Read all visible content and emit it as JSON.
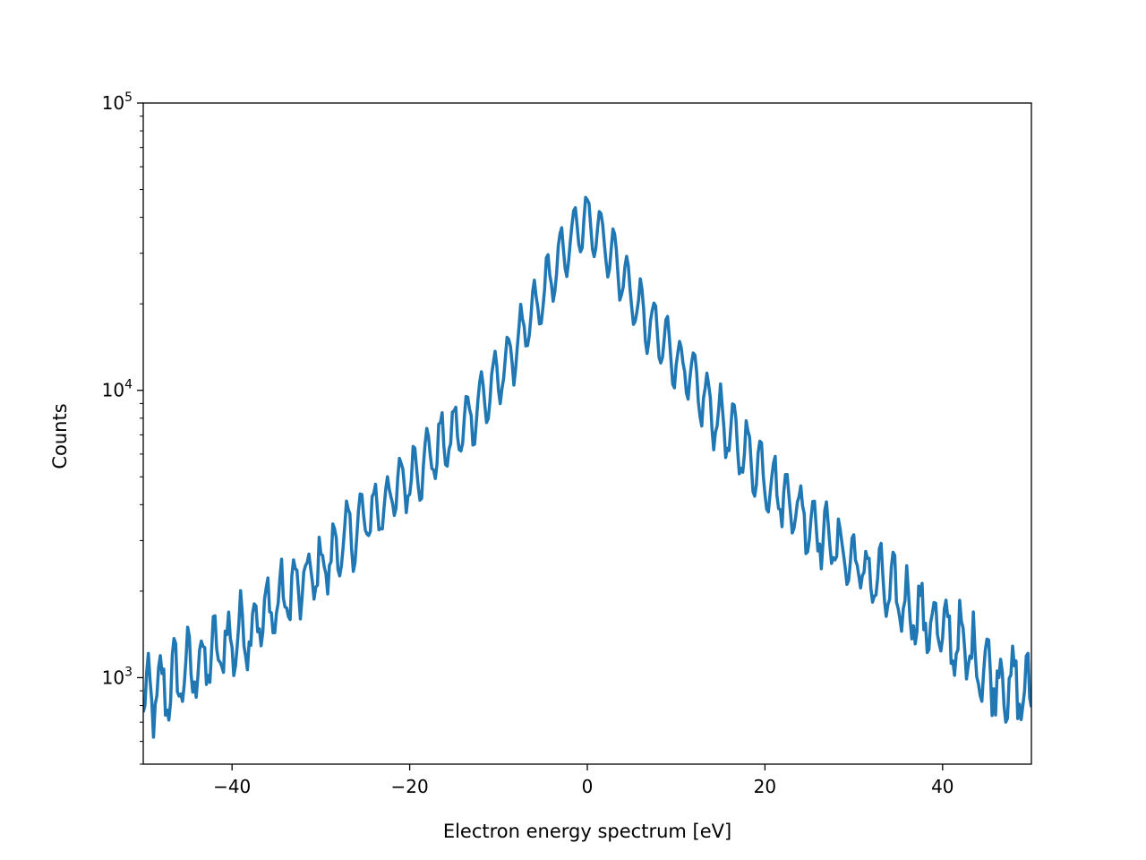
{
  "chart_data": {
    "type": "line",
    "title": "",
    "xlabel": "Electron energy spectrum [eV]",
    "ylabel": "Counts",
    "xlim": [
      -50,
      50
    ],
    "ylim": [
      500,
      100000
    ],
    "yscale": "log",
    "grid": false,
    "x_ticks": [
      -40,
      -20,
      0,
      20,
      40
    ],
    "x_tick_labels": [
      "−40",
      "−20",
      "0",
      "20",
      "40"
    ],
    "y_ticks": [
      1000,
      10000,
      100000
    ],
    "y_tick_labels": [
      {
        "base": "10",
        "exp": "3"
      },
      {
        "base": "10",
        "exp": "4"
      },
      {
        "base": "10",
        "exp": "5"
      }
    ],
    "series": [
      {
        "color": "#1f77b4",
        "peak_energy": 0,
        "peak_counts": 46000,
        "x": [
          -50,
          -46,
          -42,
          -38,
          -34,
          -30,
          -26,
          -22,
          -18,
          -14,
          -10,
          -6,
          -4,
          -2,
          0,
          2,
          4,
          6,
          10,
          14,
          18,
          22,
          26,
          30,
          34,
          38,
          42,
          46,
          50
        ],
        "envelope_counts": [
          800,
          1000,
          1200,
          1500,
          1900,
          2400,
          3300,
          4300,
          5800,
          7500,
          11000,
          18500,
          25000,
          33000,
          40000,
          33000,
          25000,
          18500,
          13000,
          8500,
          6000,
          4300,
          3300,
          2500,
          2000,
          1600,
          1300,
          1000,
          850
        ]
      }
    ]
  }
}
